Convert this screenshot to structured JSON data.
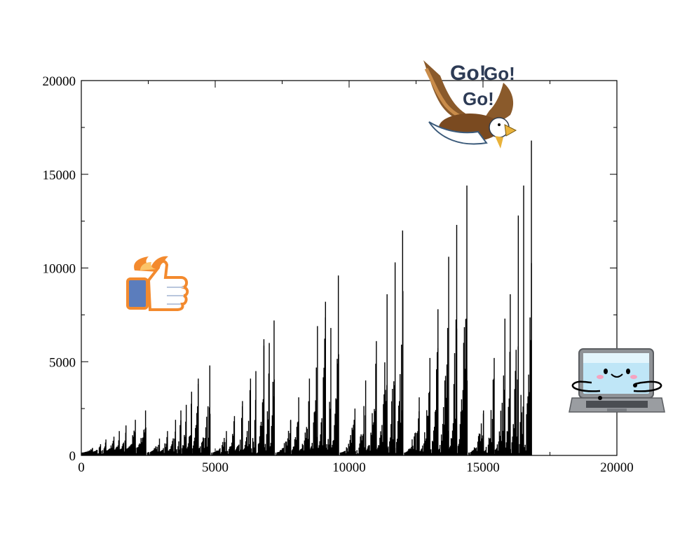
{
  "chart_data": {
    "type": "bar",
    "title": "",
    "xlabel": "",
    "ylabel": "",
    "xlim": [
      0,
      20000
    ],
    "ylim": [
      0,
      20000
    ],
    "x_ticks": [
      0,
      5000,
      10000,
      15000,
      20000
    ],
    "y_ticks": [
      0,
      5000,
      10000,
      15000,
      20000
    ],
    "x_tick_labels": [
      "0",
      "5000",
      "10000",
      "15000",
      "20000"
    ],
    "y_tick_labels": [
      "0",
      "5000",
      "10000",
      "15000",
      "20000"
    ],
    "grid": false,
    "legend": "none",
    "bar_color": "#000000",
    "segments": [
      {
        "x_start": 0,
        "x_end": 2400,
        "peaks": [
          [
            400,
            400
          ],
          [
            700,
            600
          ],
          [
            900,
            850
          ],
          [
            1200,
            1000
          ],
          [
            1400,
            1300
          ],
          [
            1650,
            1600
          ],
          [
            2000,
            1900
          ],
          [
            2380,
            2400
          ]
        ]
      },
      {
        "x_start": 2450,
        "x_end": 4800,
        "peaks": [
          [
            2900,
            900
          ],
          [
            3200,
            1300
          ],
          [
            3500,
            1900
          ],
          [
            3700,
            2400
          ],
          [
            3900,
            2700
          ],
          [
            4100,
            3400
          ],
          [
            4350,
            4100
          ],
          [
            4780,
            4800
          ]
        ]
      },
      {
        "x_start": 4850,
        "x_end": 7200,
        "peaks": [
          [
            5400,
            1300
          ],
          [
            5700,
            2100
          ],
          [
            6000,
            2900
          ],
          [
            6300,
            4100
          ],
          [
            6500,
            4500
          ],
          [
            6800,
            6200
          ],
          [
            7000,
            6000
          ],
          [
            7180,
            7200
          ]
        ]
      },
      {
        "x_start": 7250,
        "x_end": 9600,
        "peaks": [
          [
            7800,
            1900
          ],
          [
            8100,
            3100
          ],
          [
            8500,
            4100
          ],
          [
            8800,
            6900
          ],
          [
            9100,
            8200
          ],
          [
            9300,
            6800
          ],
          [
            9580,
            9600
          ]
        ]
      },
      {
        "x_start": 9650,
        "x_end": 12000,
        "peaks": [
          [
            10200,
            2500
          ],
          [
            10600,
            4000
          ],
          [
            11000,
            6100
          ],
          [
            11400,
            8600
          ],
          [
            11700,
            10300
          ],
          [
            11980,
            12000
          ]
        ]
      },
      {
        "x_start": 12050,
        "x_end": 14400,
        "peaks": [
          [
            12600,
            3100
          ],
          [
            13000,
            5200
          ],
          [
            13300,
            7800
          ],
          [
            13700,
            10600
          ],
          [
            14000,
            12300
          ],
          [
            14380,
            14400
          ]
        ]
      },
      {
        "x_start": 14450,
        "x_end": 16800,
        "peaks": [
          [
            15000,
            2400
          ],
          [
            15400,
            5200
          ],
          [
            15800,
            7300
          ],
          [
            16000,
            8600
          ],
          [
            16300,
            12800
          ],
          [
            16500,
            14400
          ],
          [
            16790,
            16800
          ]
        ]
      }
    ]
  },
  "stickers": {
    "eagle": {
      "caption": "Go! Go! Go!",
      "icon": "cartoon-eagle-icon"
    },
    "thumb": {
      "icon": "thumbs-up-fire-icon"
    },
    "laptop": {
      "icon": "smiling-laptop-icon"
    }
  }
}
